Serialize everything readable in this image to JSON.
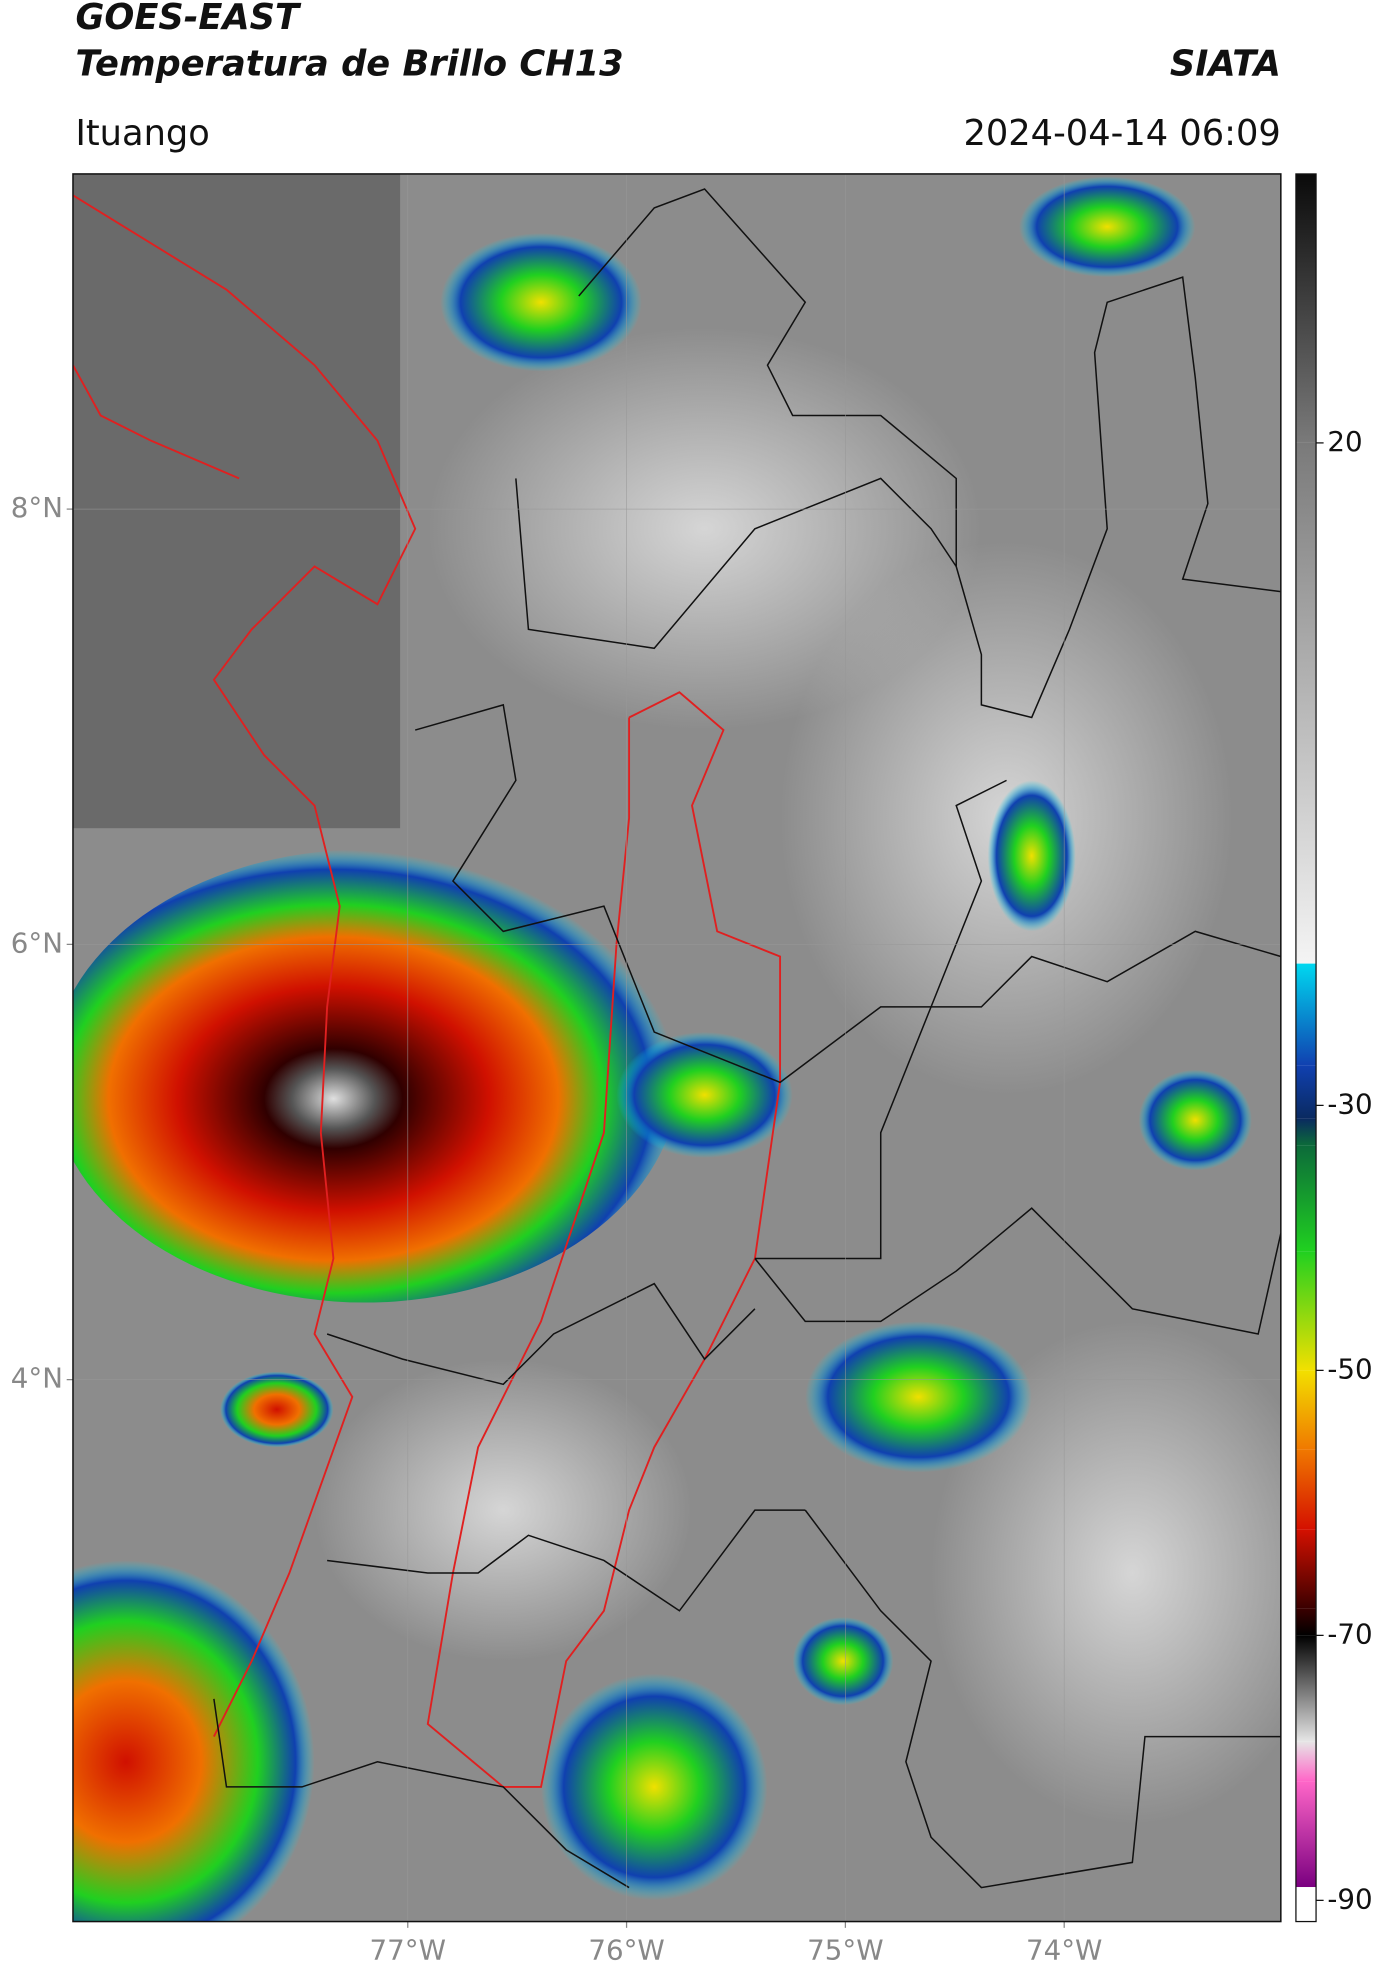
{
  "header": {
    "title": "GOES-EAST",
    "subtitle": "Temperatura de Brillo CH13",
    "source": "SIATA",
    "location": "Ituango",
    "datetime": "2024-04-14 06:09"
  },
  "map": {
    "xlim": [
      -78.53,
      -73.01
    ],
    "ylim": [
      1.51,
      9.54
    ],
    "lat_ticks": [
      {
        "value": 8,
        "label": "8°N"
      },
      {
        "value": 6,
        "label": "6°N"
      },
      {
        "value": 4,
        "label": "4°N"
      }
    ],
    "lon_ticks": [
      {
        "value": -77,
        "label": "77°W"
      },
      {
        "value": -76,
        "label": "76°W"
      },
      {
        "value": -75,
        "label": "75°W"
      },
      {
        "value": -74,
        "label": "74°W"
      }
    ],
    "grid": true
  },
  "colorbar": {
    "clim": [
      -91.6,
      40.3
    ],
    "ticks": [
      20,
      -30,
      -50,
      -70,
      -90
    ],
    "stops": [
      {
        "value": 40.3,
        "color": "#0a0a0a"
      },
      {
        "value": 20,
        "color": "#7a7a7a"
      },
      {
        "value": -19.3,
        "color": "#f4f4f4"
      },
      {
        "value": -19.3,
        "color": "#00d8f0"
      },
      {
        "value": -27,
        "color": "#1040b0"
      },
      {
        "value": -31,
        "color": "#0a2a60"
      },
      {
        "value": -33,
        "color": "#0c6a3a"
      },
      {
        "value": -41,
        "color": "#20d020"
      },
      {
        "value": -50,
        "color": "#f2e000"
      },
      {
        "value": -56,
        "color": "#f07800"
      },
      {
        "value": -62,
        "color": "#d41000"
      },
      {
        "value": -68,
        "color": "#3a0000"
      },
      {
        "value": -70,
        "color": "#000000"
      },
      {
        "value": -78,
        "color": "#e6e6e6"
      },
      {
        "value": -81,
        "color": "#ff66c8"
      },
      {
        "value": -89,
        "color": "#7a0080"
      },
      {
        "value": -89,
        "color": "#ffffff"
      },
      {
        "value": -91.6,
        "color": "#ffffff"
      }
    ]
  }
}
